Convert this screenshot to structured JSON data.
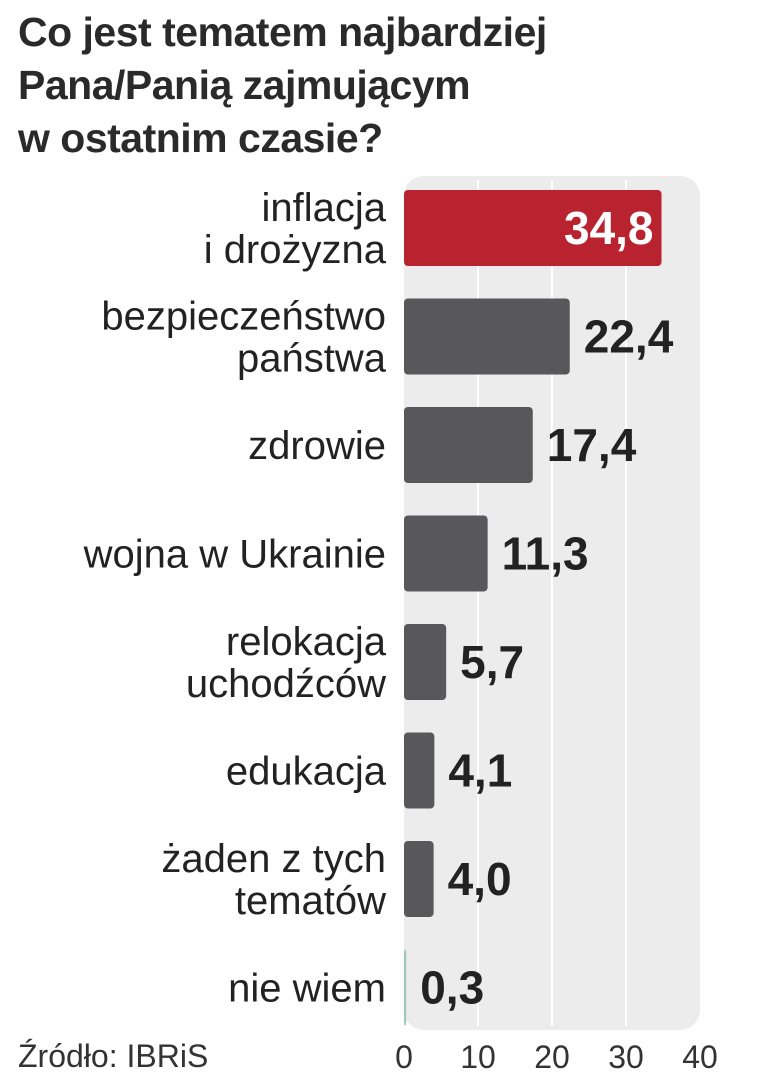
{
  "title_lines": [
    "Co jest tematem najbardziej",
    "Pana/Panią zajmującym",
    "w ostatnim czasie?"
  ],
  "source": "Źródło: IBRiS",
  "colors": {
    "highlight": "#b8232f",
    "bar": "#58585a",
    "plot_bg": "#ececec",
    "grid": "#ffffff",
    "text": "#222222"
  },
  "chart_data": {
    "type": "bar",
    "orientation": "horizontal",
    "categories": [
      [
        "inflacja",
        "i drożyzna"
      ],
      [
        "bezpieczeństwo",
        "państwa"
      ],
      [
        "zdrowie"
      ],
      [
        "wojna w Ukrainie"
      ],
      [
        "relokacja",
        "uchodźców"
      ],
      [
        "edukacja"
      ],
      [
        "żaden z tych",
        "tematów"
      ],
      [
        "nie wiem"
      ]
    ],
    "values": [
      34.8,
      22.4,
      17.4,
      11.3,
      5.7,
      4.1,
      4.0,
      0.3
    ],
    "value_labels": [
      "34,8",
      "22,4",
      "17,4",
      "11,3",
      "5,7",
      "4,1",
      "4,0",
      "0,3"
    ],
    "highlight_index": 0,
    "xlim": [
      0,
      40
    ],
    "xticks": [
      0,
      10,
      20,
      30,
      40
    ],
    "grid": true
  }
}
